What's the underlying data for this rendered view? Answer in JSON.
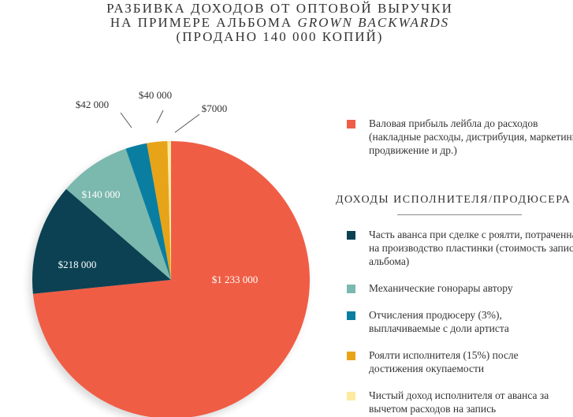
{
  "title": {
    "line1": "РАЗБИВКА ДОХОДОВ ОТ ОПТОВОЙ ВЫРУЧКИ",
    "line2_prefix": "НА ПРИМЕРЕ АЛЬБОМА ",
    "line2_album": "GROWN BACKWARDS",
    "line3": "(ПРОДАНО 140 000 КОПИЙ)"
  },
  "chart_data": {
    "type": "pie",
    "start": "top",
    "direction": "clockwise",
    "slices": [
      {
        "label": "$1 233 000",
        "value": 1233000,
        "color": "#F05D45",
        "legend": "Валовая прибыль лейбла до расходов (накладные расходы, дистрибуция, маркетинг, продвижение и др.)"
      },
      {
        "label": "$218 000",
        "value": 218000,
        "color": "#0B4152",
        "legend": "Часть аванса при сделке с роялти, потраченная на производство пластинки (стоимость записи альбома)"
      },
      {
        "label": "$140 000",
        "value": 140000,
        "color": "#7BB8AE",
        "legend": "Механические гонорары автору"
      },
      {
        "label": "$42 000",
        "value": 42000,
        "color": "#0A7EA0",
        "legend": "Отчисления продюсеру (3%), выплачиваемые с доли артиста"
      },
      {
        "label": "$40 000",
        "value": 40000,
        "color": "#E8A418",
        "legend": "Роялти исполнителя (15%) после достижения окупаемости"
      },
      {
        "label": "$7000",
        "value": 7000,
        "color": "#FCEBA0",
        "legend": "Чистый доход исполнителя от аванса за вычетом расходов на запись"
      }
    ],
    "legend_section": "ДОХОДЫ ИСПОЛНИТЕЛЯ/ПРОДЮСЕРА"
  }
}
